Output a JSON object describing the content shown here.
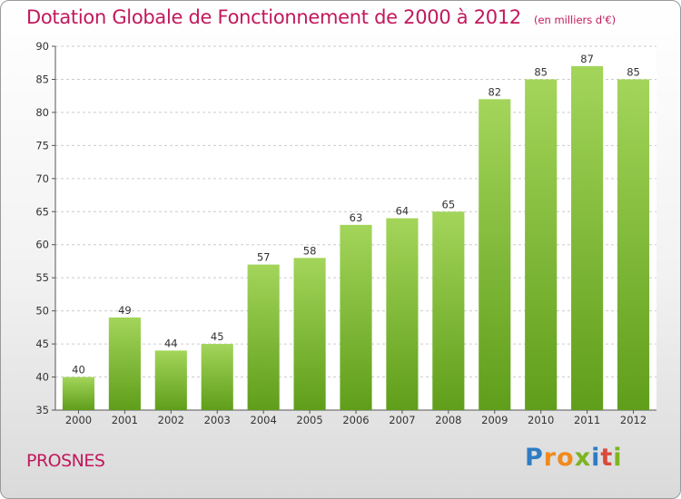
{
  "header": {
    "title": "Dotation Globale de Fonctionnement de 2000 à 2012",
    "unit": "(en milliers d'€)"
  },
  "footer": {
    "commune": "PROSNES",
    "logo_letters": [
      {
        "ch": "P",
        "color": "#2e7dc4"
      },
      {
        "ch": "r",
        "color": "#f08a1c"
      },
      {
        "ch": "o",
        "color": "#f08a1c"
      },
      {
        "ch": "x",
        "color": "#7bb51f"
      },
      {
        "ch": "i",
        "color": "#2e7dc4"
      },
      {
        "ch": "t",
        "color": "#d94b3d"
      },
      {
        "ch": "i",
        "color": "#7bb51f"
      }
    ]
  },
  "colors": {
    "bar_light": "#a3d55a",
    "bar_dark": "#5f9e1a",
    "grid": "#cccccc",
    "accent": "#c2185b"
  },
  "chart_data": {
    "type": "bar",
    "title": "Dotation Globale de Fonctionnement de 2000 à 2012",
    "subtitle": "(en milliers d'€)",
    "categories": [
      "2000",
      "2001",
      "2002",
      "2003",
      "2004",
      "2005",
      "2006",
      "2007",
      "2008",
      "2009",
      "2010",
      "2011",
      "2012"
    ],
    "values": [
      40,
      49,
      44,
      45,
      57,
      58,
      63,
      64,
      65,
      82,
      85,
      87,
      85
    ],
    "ylim": [
      35,
      90
    ],
    "yticks": [
      35,
      40,
      45,
      50,
      55,
      60,
      65,
      70,
      75,
      80,
      85,
      90
    ],
    "grid": "horizontal dashed",
    "legend": "none"
  }
}
